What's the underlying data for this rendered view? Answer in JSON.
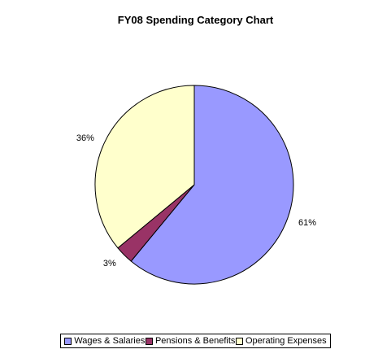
{
  "chart_data": {
    "type": "pie",
    "title": "FY08 Spending Category Chart",
    "categories": [
      "Wages & Salaries",
      "Pensions & Benefits",
      "Operating Expenses"
    ],
    "values": [
      61,
      3,
      36
    ],
    "labels": [
      "61%",
      "3%",
      "36%"
    ],
    "colors": [
      "#9999ff",
      "#993366",
      "#ffffcc"
    ],
    "legend_position": "bottom"
  }
}
